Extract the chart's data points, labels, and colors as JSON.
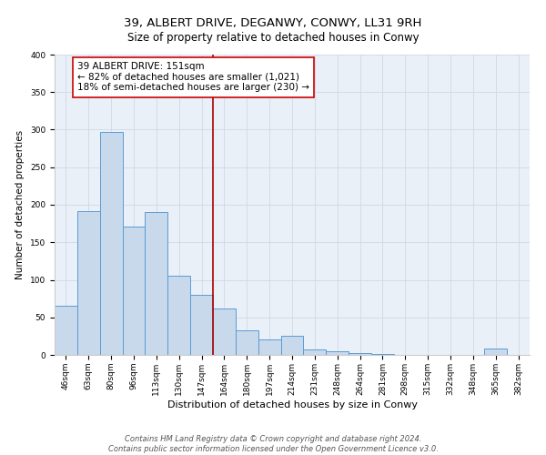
{
  "title": "39, ALBERT DRIVE, DEGANWY, CONWY, LL31 9RH",
  "subtitle": "Size of property relative to detached houses in Conwy",
  "xlabel": "Distribution of detached houses by size in Conwy",
  "ylabel": "Number of detached properties",
  "bar_labels": [
    "46sqm",
    "63sqm",
    "80sqm",
    "96sqm",
    "113sqm",
    "130sqm",
    "147sqm",
    "164sqm",
    "180sqm",
    "197sqm",
    "214sqm",
    "231sqm",
    "248sqm",
    "264sqm",
    "281sqm",
    "298sqm",
    "315sqm",
    "332sqm",
    "348sqm",
    "365sqm",
    "382sqm"
  ],
  "bar_values": [
    65,
    191,
    297,
    171,
    190,
    105,
    80,
    62,
    33,
    21,
    25,
    7,
    5,
    2,
    1,
    0,
    0,
    0,
    0,
    8,
    0
  ],
  "bar_color": "#c8d9ec",
  "bar_edge_color": "#5b9bd5",
  "highlight_line_value": 6.5,
  "annotation_title": "39 ALBERT DRIVE: 151sqm",
  "annotation_line1": "← 82% of detached houses are smaller (1,021)",
  "annotation_line2": "18% of semi-detached houses are larger (230) →",
  "annotation_box_color": "#ffffff",
  "annotation_box_edge_color": "#cc0000",
  "vline_color": "#aa0000",
  "footer1": "Contains HM Land Registry data © Crown copyright and database right 2024.",
  "footer2": "Contains public sector information licensed under the Open Government Licence v3.0.",
  "ylim": [
    0,
    400
  ],
  "yticks": [
    0,
    50,
    100,
    150,
    200,
    250,
    300,
    350,
    400
  ],
  "grid_color": "#d0d8e8",
  "bg_color": "#eaf0f8",
  "fig_bg_color": "#ffffff",
  "title_fontsize": 9.5,
  "subtitle_fontsize": 8.5,
  "xlabel_fontsize": 8,
  "ylabel_fontsize": 7.5,
  "tick_fontsize": 6.5,
  "annotation_fontsize": 7.5,
  "footer_fontsize": 6
}
